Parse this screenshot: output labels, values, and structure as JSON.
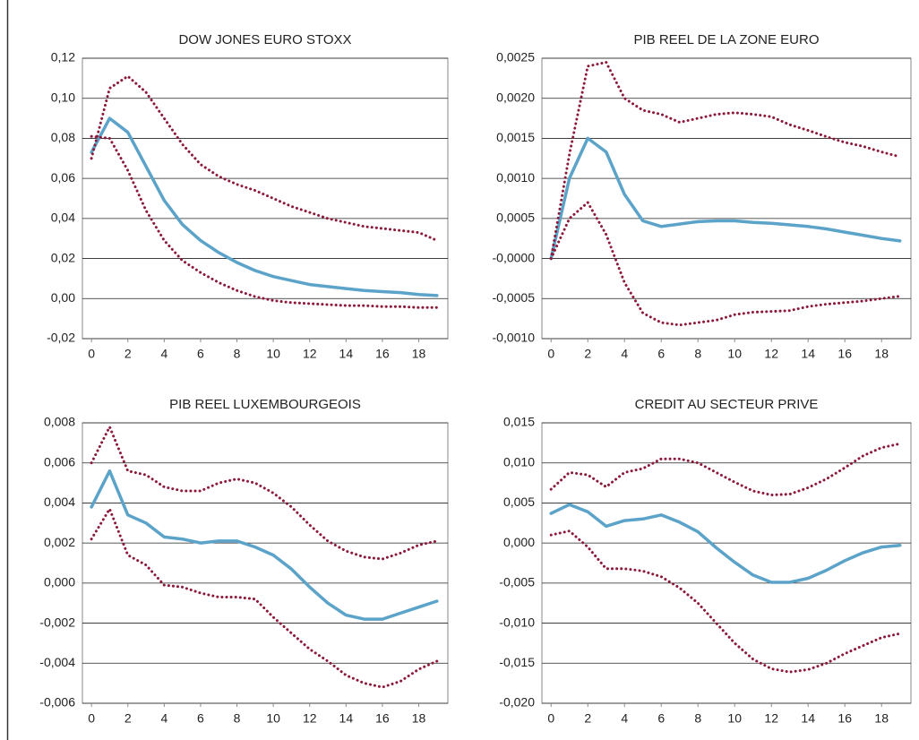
{
  "chart_data": [
    {
      "type": "line",
      "title": "DOW JONES EURO STOXX",
      "x": [
        0,
        1,
        2,
        3,
        4,
        5,
        6,
        7,
        8,
        9,
        10,
        11,
        12,
        13,
        14,
        15,
        16,
        17,
        18,
        19
      ],
      "xlim": [
        -0.5,
        19.6
      ],
      "xticks": [
        0,
        2,
        4,
        6,
        8,
        10,
        12,
        14,
        16,
        18
      ],
      "ylim": [
        -0.02,
        0.12
      ],
      "yticks": [
        {
          "value": -0.02,
          "label": "-0,02"
        },
        {
          "value": 0,
          "label": "0,00"
        },
        {
          "value": 0.02,
          "label": "0,02"
        },
        {
          "value": 0.04,
          "label": "0,04"
        },
        {
          "value": 0.06,
          "label": "0,06"
        },
        {
          "value": 0.08,
          "label": "0,08"
        },
        {
          "value": 0.1,
          "label": "0,10"
        },
        {
          "value": 0.12,
          "label": "0,12"
        }
      ],
      "grid": true,
      "series": [
        {
          "color": "#5ba3c9",
          "style": "solid",
          "values": [
            0.073,
            0.09,
            0.083,
            0.066,
            0.049,
            0.037,
            0.029,
            0.023,
            0.018,
            0.014,
            0.011,
            0.009,
            0.007,
            0.006,
            0.005,
            0.004,
            0.0035,
            0.003,
            0.002,
            0.0015
          ]
        },
        {
          "color": "#8b1a3a",
          "style": "dotted",
          "values": [
            0.07,
            0.105,
            0.111,
            0.103,
            0.09,
            0.077,
            0.067,
            0.061,
            0.057,
            0.054,
            0.05,
            0.046,
            0.043,
            0.04,
            0.038,
            0.036,
            0.035,
            0.034,
            0.033,
            0.029
          ]
        },
        {
          "color": "#8b1a3a",
          "style": "dotted",
          "values": [
            0.081,
            0.08,
            0.064,
            0.044,
            0.029,
            0.019,
            0.013,
            0.008,
            0.004,
            0.001,
            -0.001,
            -0.002,
            -0.0025,
            -0.003,
            -0.0035,
            -0.0035,
            -0.004,
            -0.004,
            -0.0045,
            -0.0045
          ]
        }
      ]
    },
    {
      "type": "line",
      "title": "PIB REEL DE LA ZONE EURO",
      "x": [
        0,
        1,
        2,
        3,
        4,
        5,
        6,
        7,
        8,
        9,
        10,
        11,
        12,
        13,
        14,
        15,
        16,
        17,
        18,
        19
      ],
      "xlim": [
        -0.5,
        19.6
      ],
      "xticks": [
        0,
        2,
        4,
        6,
        8,
        10,
        12,
        14,
        16,
        18
      ],
      "ylim": [
        -0.001,
        0.0025
      ],
      "yticks": [
        {
          "value": -0.001,
          "label": "-0,0010"
        },
        {
          "value": -0.0005,
          "label": "-0,0005"
        },
        {
          "value": 0,
          "label": "-0,0000"
        },
        {
          "value": 0.0005,
          "label": "0,0005"
        },
        {
          "value": 0.001,
          "label": "0,0010"
        },
        {
          "value": 0.0015,
          "label": "0,0015"
        },
        {
          "value": 0.002,
          "label": "0,0020"
        },
        {
          "value": 0.0025,
          "label": "0,0025"
        }
      ],
      "grid": true,
      "series": [
        {
          "color": "#5ba3c9",
          "style": "solid",
          "values": [
            0.0,
            0.001,
            0.0015,
            0.00133,
            0.0008,
            0.00047,
            0.0004,
            0.00043,
            0.00046,
            0.00047,
            0.00047,
            0.00045,
            0.00044,
            0.00042,
            0.0004,
            0.00037,
            0.00033,
            0.00029,
            0.00025,
            0.00022
          ]
        },
        {
          "color": "#8b1a3a",
          "style": "dotted",
          "values": [
            0.0,
            0.0013,
            0.0024,
            0.00245,
            0.002,
            0.00185,
            0.0018,
            0.0017,
            0.00175,
            0.0018,
            0.00182,
            0.0018,
            0.00177,
            0.00167,
            0.0016,
            0.00152,
            0.00145,
            0.0014,
            0.00133,
            0.00127
          ]
        },
        {
          "color": "#8b1a3a",
          "style": "dotted",
          "values": [
            0.0,
            0.0005,
            0.0007,
            0.0003,
            -0.0003,
            -0.00068,
            -0.0008,
            -0.00083,
            -0.0008,
            -0.00077,
            -0.0007,
            -0.00067,
            -0.00066,
            -0.00065,
            -0.0006,
            -0.00057,
            -0.00055,
            -0.00053,
            -0.0005,
            -0.00047
          ]
        }
      ]
    },
    {
      "type": "line",
      "title": "PIB REEL LUXEMBOURGEOIS",
      "x": [
        0,
        1,
        2,
        3,
        4,
        5,
        6,
        7,
        8,
        9,
        10,
        11,
        12,
        13,
        14,
        15,
        16,
        17,
        18,
        19
      ],
      "xlim": [
        -0.5,
        19.6
      ],
      "xticks": [
        0,
        2,
        4,
        6,
        8,
        10,
        12,
        14,
        16,
        18
      ],
      "ylim": [
        -0.006,
        0.008
      ],
      "yticks": [
        {
          "value": -0.006,
          "label": "-0,006"
        },
        {
          "value": -0.004,
          "label": "-0,004"
        },
        {
          "value": -0.002,
          "label": "-0,002"
        },
        {
          "value": 0,
          "label": "0,000"
        },
        {
          "value": 0.002,
          "label": "0,002"
        },
        {
          "value": 0.004,
          "label": "0,004"
        },
        {
          "value": 0.006,
          "label": "0,006"
        },
        {
          "value": 0.008,
          "label": "0,008"
        }
      ],
      "grid": true,
      "series": [
        {
          "color": "#5ba3c9",
          "style": "solid",
          "values": [
            0.0038,
            0.0056,
            0.0034,
            0.003,
            0.0023,
            0.0022,
            0.002,
            0.0021,
            0.0021,
            0.0018,
            0.0014,
            0.0007,
            -0.0002,
            -0.001,
            -0.0016,
            -0.0018,
            -0.0018,
            -0.0015,
            -0.0012,
            -0.0009
          ]
        },
        {
          "color": "#8b1a3a",
          "style": "dotted",
          "values": [
            0.006,
            0.0078,
            0.0056,
            0.0054,
            0.0048,
            0.0046,
            0.0046,
            0.005,
            0.0052,
            0.005,
            0.0045,
            0.0038,
            0.0029,
            0.0021,
            0.0016,
            0.0013,
            0.0012,
            0.0015,
            0.0019,
            0.0021
          ]
        },
        {
          "color": "#8b1a3a",
          "style": "dotted",
          "values": [
            0.0022,
            0.0037,
            0.0014,
            0.0009,
            -0.0001,
            -0.0002,
            -0.0005,
            -0.0007,
            -0.0007,
            -0.0008,
            -0.0017,
            -0.0025,
            -0.0033,
            -0.0039,
            -0.0046,
            -0.005,
            -0.0052,
            -0.0049,
            -0.0043,
            -0.0039
          ]
        }
      ]
    },
    {
      "type": "line",
      "title": "CREDIT AU SECTEUR PRIVE",
      "x": [
        0,
        1,
        2,
        3,
        4,
        5,
        6,
        7,
        8,
        9,
        10,
        11,
        12,
        13,
        14,
        15,
        16,
        17,
        18,
        19
      ],
      "xlim": [
        -0.5,
        19.6
      ],
      "xticks": [
        0,
        2,
        4,
        6,
        8,
        10,
        12,
        14,
        16,
        18
      ],
      "ylim": [
        -0.02,
        0.015
      ],
      "yticks": [
        {
          "value": -0.02,
          "label": "-0,020"
        },
        {
          "value": -0.015,
          "label": "-0,015"
        },
        {
          "value": -0.01,
          "label": "-0,010"
        },
        {
          "value": -0.005,
          "label": "-0,005"
        },
        {
          "value": 0,
          "label": "0,000"
        },
        {
          "value": 0.005,
          "label": "0,005"
        },
        {
          "value": 0.01,
          "label": "0,010"
        },
        {
          "value": 0.015,
          "label": "0,015"
        }
      ],
      "grid": true,
      "series": [
        {
          "color": "#5ba3c9",
          "style": "solid",
          "values": [
            0.0037,
            0.0048,
            0.0039,
            0.0021,
            0.0028,
            0.003,
            0.0035,
            0.0026,
            0.0014,
            -0.0006,
            -0.0024,
            -0.004,
            -0.0049,
            -0.0049,
            -0.0044,
            -0.0034,
            -0.0022,
            -0.0012,
            -0.0005,
            -0.0003
          ]
        },
        {
          "color": "#8b1a3a",
          "style": "dotted",
          "values": [
            0.0067,
            0.0088,
            0.0085,
            0.007,
            0.0088,
            0.0093,
            0.0105,
            0.0105,
            0.01,
            0.0088,
            0.0076,
            0.0065,
            0.006,
            0.0061,
            0.0069,
            0.008,
            0.0094,
            0.0109,
            0.0119,
            0.0124
          ]
        },
        {
          "color": "#8b1a3a",
          "style": "dotted",
          "values": [
            0.001,
            0.0015,
            -0.0005,
            -0.0032,
            -0.0032,
            -0.0035,
            -0.0042,
            -0.0056,
            -0.0075,
            -0.01,
            -0.0125,
            -0.0145,
            -0.0157,
            -0.0161,
            -0.0158,
            -0.015,
            -0.0138,
            -0.0128,
            -0.0118,
            -0.0113
          ]
        }
      ]
    }
  ]
}
